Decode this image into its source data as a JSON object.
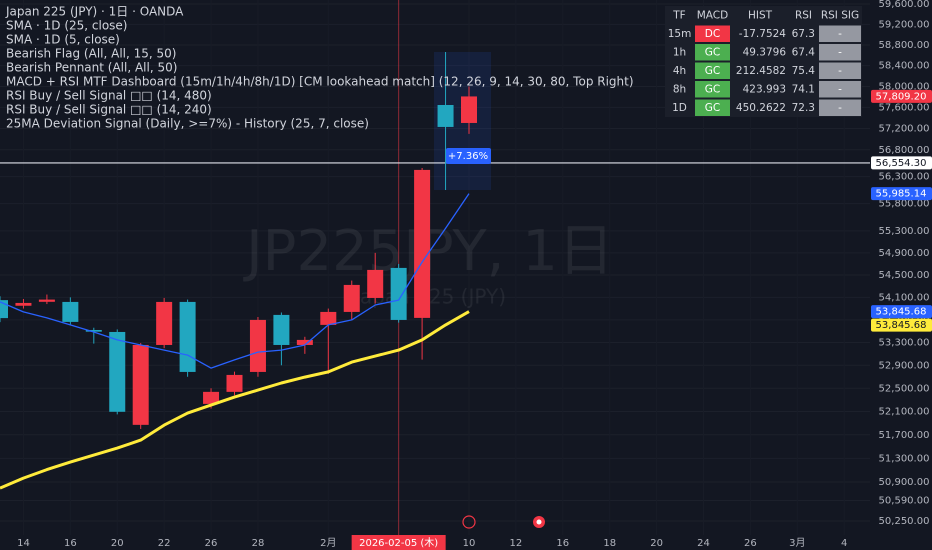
{
  "chart_data": {
    "type": "candlestick",
    "title": "Japan 225 (JPY) · 1日 · OANDA",
    "watermark": "JP225JPY, 1日",
    "watermark_subtitle": "Japan 225 (JPY)",
    "indicators": [
      "Bearish Flag (All, All, 15, 50)",
      "Bearish Pennant (All, All, 50)",
      "MACD + RSI MTF Dashboard (15m/1h/4h/8h/1D) [CM lookahead match] (12, 26, 9, 14, 30, 80, Top Right)",
      "RSI Buy / Sell Signal □□ (14, 480)",
      "RSI Buy / Sell Signal □□ (14, 240)",
      "25MA Deviation Signal (Daily, >=7%) - History (25, 7, close)"
    ],
    "categories": [
      null,
      "14",
      null,
      "16",
      null,
      "20",
      null,
      "22",
      null,
      "26",
      null,
      "28",
      null,
      null,
      "2月",
      null,
      null,
      "2026-02-05 (木)",
      null,
      null,
      "10",
      null,
      "12",
      null,
      "16",
      null,
      "18",
      null,
      "20",
      null,
      "24",
      null,
      "26",
      null,
      "3月",
      null,
      "4"
    ],
    "crosshair_category": "2026-02-05 (木)",
    "candles": {
      "open": [
        54050,
        53950,
        54020,
        54018,
        53520,
        53485,
        51870,
        53256,
        54018,
        52230,
        52438,
        52784,
        53787,
        53256,
        53610,
        53840,
        54089,
        54628,
        53734,
        57646,
        57305,
        null,
        null,
        null,
        null,
        null,
        null,
        null,
        null,
        null,
        null,
        null,
        null,
        null,
        null,
        null,
        null
      ],
      "high": [
        54120,
        54070,
        54150,
        54100,
        53560,
        53530,
        53290,
        54090,
        54060,
        52500,
        52790,
        53750,
        53830,
        53400,
        53900,
        54400,
        54900,
        54700,
        56460,
        58664,
        58000,
        null,
        null,
        null,
        null,
        null,
        null,
        null,
        null,
        null,
        null,
        null,
        null,
        null,
        null,
        null,
        null
      ],
      "low": [
        53660,
        53900,
        53980,
        53600,
        53280,
        52050,
        51800,
        53200,
        52700,
        52150,
        52380,
        52700,
        52900,
        53100,
        52750,
        53700,
        53990,
        53650,
        53000,
        56052,
        57100,
        null,
        null,
        null,
        null,
        null,
        null,
        null,
        null,
        null,
        null,
        null,
        null,
        null,
        null,
        null,
        null
      ],
      "close": [
        53730,
        54000,
        54060,
        53663,
        53490,
        52094,
        53256,
        54018,
        52784,
        52438,
        52732,
        53698,
        53256,
        53345,
        53840,
        54322,
        54592,
        53698,
        56424,
        57230,
        57809.2,
        null,
        null,
        null,
        null,
        null,
        null,
        null,
        null,
        null,
        null,
        null,
        null,
        null,
        null,
        null,
        null
      ]
    },
    "up_color": "#f23645",
    "down_color": "#22a7c0",
    "series": [
      {
        "name": "SMA · 1D (25, close)",
        "color": "#ffeb3b",
        "values": [
          50799,
          50967,
          51110,
          51237,
          51355,
          51473,
          51609,
          51866,
          52071,
          52209,
          52347,
          52469,
          52591,
          52694,
          52784,
          52956,
          53060,
          53165,
          53345,
          53610,
          53845.68,
          null,
          null,
          null,
          null,
          null,
          null,
          null,
          null,
          null,
          null,
          null,
          null,
          null,
          null,
          null,
          null
        ]
      },
      {
        "name": "SMA · 1D (5, close)",
        "color": "#2962ff",
        "values": [
          54018,
          53840,
          53734,
          53610,
          53485,
          53345,
          53256,
          53165,
          53078,
          52851,
          52995,
          53131,
          53165,
          53256,
          53610,
          53698,
          53964,
          54050,
          54732,
          55349,
          55985.14,
          null,
          null,
          null,
          null,
          null,
          null,
          null,
          null,
          null,
          null,
          null,
          null,
          null,
          null,
          null,
          null
        ]
      }
    ],
    "log_scale": true,
    "grid": true,
    "ylim": [
      50018,
      59679
    ],
    "yticks": [
      {
        "value": 59600,
        "label": "59,600.00"
      },
      {
        "value": 59200,
        "label": "59,200.00"
      },
      {
        "value": 58800,
        "label": "58,800.00"
      },
      {
        "value": 58400,
        "label": "58,400.00"
      },
      {
        "value": 58000,
        "label": "58,000.00"
      },
      {
        "value": 57600,
        "label": "57,600.00"
      },
      {
        "value": 57200,
        "label": "57,200.00"
      },
      {
        "value": 56800,
        "label": "56,800.00"
      },
      {
        "value": 56300,
        "label": "56,300.00"
      },
      {
        "value": 55800,
        "label": "55,800.00"
      },
      {
        "value": 55300,
        "label": "55,300.00"
      },
      {
        "value": 54900,
        "label": "54,900.00"
      },
      {
        "value": 54500,
        "label": "54,500.00"
      },
      {
        "value": 54100,
        "label": "54,100.00"
      },
      {
        "value": 53700,
        "label": "53,700.00"
      },
      {
        "value": 53300,
        "label": "53,300.00"
      },
      {
        "value": 52900,
        "label": "52,900.00"
      },
      {
        "value": 52500,
        "label": "52,500.00"
      },
      {
        "value": 52100,
        "label": "52,100.00"
      },
      {
        "value": 51700,
        "label": "51,700.00"
      },
      {
        "value": 51300,
        "label": "51,300.00"
      },
      {
        "value": 50900,
        "label": "50,900.00"
      },
      {
        "value": 50590,
        "label": "50,590.00"
      },
      {
        "value": 50250,
        "label": "50,250.00"
      }
    ],
    "price_line": 56554.3,
    "price_labels": [
      {
        "value": 57809.2,
        "label": "57,809.20",
        "color": "#f23645"
      },
      {
        "value": 56554.3,
        "label": "56,554.30",
        "color": "#ffffff"
      },
      {
        "value": 55985.14,
        "label": "55,985.14",
        "color": "#2962ff"
      },
      {
        "value": 53845.68,
        "label": "53,845.68",
        "color": "#2962ff"
      },
      {
        "value": 53845.68,
        "label": "53,845.68",
        "color": "#ffeb3b"
      }
    ],
    "change_label": "+7.36%"
  },
  "dashboard": {
    "headers": [
      "TF",
      "MACD",
      "HIST",
      "RSI",
      "RSI SIG"
    ],
    "rows": [
      [
        "15m",
        "DC",
        "-17.7524",
        "67.3",
        "-"
      ],
      [
        "1h",
        "GC",
        "49.3796",
        "67.4",
        "-"
      ],
      [
        "4h",
        "GC",
        "212.4582",
        "75.4",
        "-"
      ],
      [
        "8h",
        "GC",
        "423.993",
        "74.1",
        "-"
      ],
      [
        "1D",
        "GC",
        "450.2622",
        "72.3",
        "-"
      ]
    ]
  }
}
